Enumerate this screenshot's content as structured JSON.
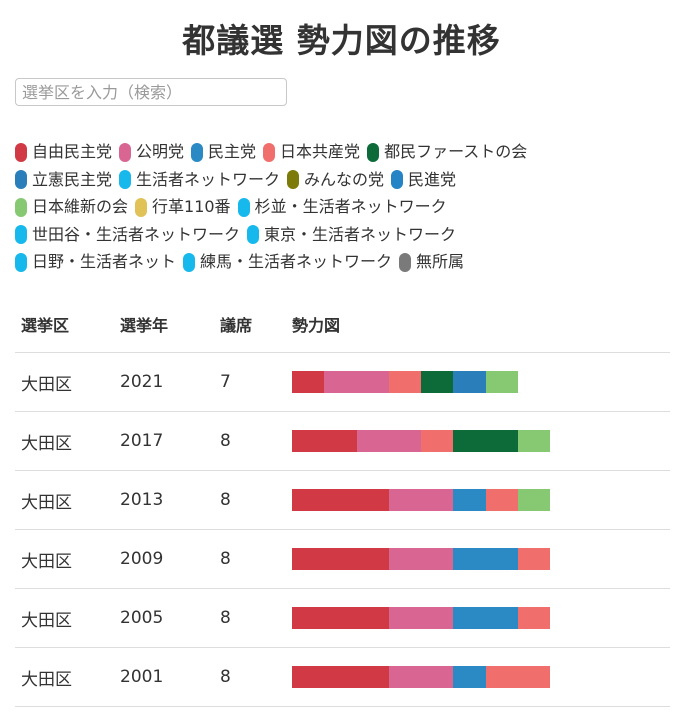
{
  "page": {
    "title": "都議選 勢力図の推移"
  },
  "search": {
    "placeholder": "選挙区を入力（検索）",
    "value": ""
  },
  "legend_rows": [
    [
      {
        "label": "自由民主党",
        "color": "#d13a44"
      },
      {
        "label": "公明党",
        "color": "#d96692"
      },
      {
        "label": "民主党",
        "color": "#2b89c4"
      },
      {
        "label": "日本共産党",
        "color": "#f06e6b"
      },
      {
        "label": "都民ファーストの会",
        "color": "#0d6b3a"
      }
    ],
    [
      {
        "label": "立憲民主党",
        "color": "#2a7fba"
      },
      {
        "label": "生活者ネットワーク",
        "color": "#17b8ec"
      },
      {
        "label": "みんなの党",
        "color": "#7c7a08"
      },
      {
        "label": "民進党",
        "color": "#2584c5"
      }
    ],
    [
      {
        "label": "日本維新の会",
        "color": "#87c872"
      },
      {
        "label": "行革110番",
        "color": "#e0c257"
      },
      {
        "label": "杉並・生活者ネットワーク",
        "color": "#17b8ec"
      }
    ],
    [
      {
        "label": "世田谷・生活者ネットワーク",
        "color": "#17b8ec"
      },
      {
        "label": "東京・生活者ネットワーク",
        "color": "#17b8ec"
      }
    ],
    [
      {
        "label": "日野・生活者ネット",
        "color": "#17b8ec"
      },
      {
        "label": "練馬・生活者ネットワーク",
        "color": "#17b8ec"
      },
      {
        "label": "無所属",
        "color": "#7a7a7a"
      }
    ]
  ],
  "table": {
    "headers": {
      "district": "選挙区",
      "year": "選挙年",
      "seats": "議席",
      "chart": "勢力図"
    },
    "seat_unit_capacity": 8,
    "rows": [
      {
        "district": "大田区",
        "year": "2021",
        "seats": "7",
        "segments": [
          {
            "party": "自由民主党",
            "seats": 1,
            "color": "#d13a44"
          },
          {
            "party": "公明党",
            "seats": 2,
            "color": "#d96692"
          },
          {
            "party": "日本共産党",
            "seats": 1,
            "color": "#f06e6b"
          },
          {
            "party": "都民ファーストの会",
            "seats": 1,
            "color": "#0d6b3a"
          },
          {
            "party": "立憲民主党",
            "seats": 1,
            "color": "#2a7fba"
          },
          {
            "party": "日本維新の会",
            "seats": 1,
            "color": "#87c872"
          }
        ]
      },
      {
        "district": "大田区",
        "year": "2017",
        "seats": "8",
        "segments": [
          {
            "party": "自由民主党",
            "seats": 2,
            "color": "#d13a44"
          },
          {
            "party": "公明党",
            "seats": 2,
            "color": "#d96692"
          },
          {
            "party": "日本共産党",
            "seats": 1,
            "color": "#f06e6b"
          },
          {
            "party": "都民ファーストの会",
            "seats": 2,
            "color": "#0d6b3a"
          },
          {
            "party": "日本維新の会",
            "seats": 1,
            "color": "#87c872"
          }
        ]
      },
      {
        "district": "大田区",
        "year": "2013",
        "seats": "8",
        "segments": [
          {
            "party": "自由民主党",
            "seats": 3,
            "color": "#d13a44"
          },
          {
            "party": "公明党",
            "seats": 2,
            "color": "#d96692"
          },
          {
            "party": "民主党",
            "seats": 1,
            "color": "#2b89c4"
          },
          {
            "party": "日本共産党",
            "seats": 1,
            "color": "#f06e6b"
          },
          {
            "party": "日本維新の会",
            "seats": 1,
            "color": "#87c872"
          }
        ]
      },
      {
        "district": "大田区",
        "year": "2009",
        "seats": "8",
        "segments": [
          {
            "party": "自由民主党",
            "seats": 3,
            "color": "#d13a44"
          },
          {
            "party": "公明党",
            "seats": 2,
            "color": "#d96692"
          },
          {
            "party": "民主党",
            "seats": 2,
            "color": "#2b89c4"
          },
          {
            "party": "日本共産党",
            "seats": 1,
            "color": "#f06e6b"
          }
        ]
      },
      {
        "district": "大田区",
        "year": "2005",
        "seats": "8",
        "segments": [
          {
            "party": "自由民主党",
            "seats": 3,
            "color": "#d13a44"
          },
          {
            "party": "公明党",
            "seats": 2,
            "color": "#d96692"
          },
          {
            "party": "民主党",
            "seats": 2,
            "color": "#2b89c4"
          },
          {
            "party": "日本共産党",
            "seats": 1,
            "color": "#f06e6b"
          }
        ]
      },
      {
        "district": "大田区",
        "year": "2001",
        "seats": "8",
        "segments": [
          {
            "party": "自由民主党",
            "seats": 3,
            "color": "#d13a44"
          },
          {
            "party": "公明党",
            "seats": 2,
            "color": "#d96692"
          },
          {
            "party": "民主党",
            "seats": 1,
            "color": "#2b89c4"
          },
          {
            "party": "日本共産党",
            "seats": 2,
            "color": "#f06e6b"
          }
        ]
      }
    ]
  }
}
